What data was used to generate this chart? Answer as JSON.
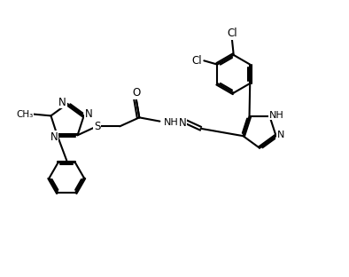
{
  "bg_color": "#ffffff",
  "atom_color": "#000000",
  "line_width": 1.5,
  "font_size": 8.5,
  "figsize": [
    3.94,
    3.12
  ],
  "dpi": 100,
  "xlim": [
    0,
    11
  ],
  "ylim": [
    0,
    8.5
  ]
}
